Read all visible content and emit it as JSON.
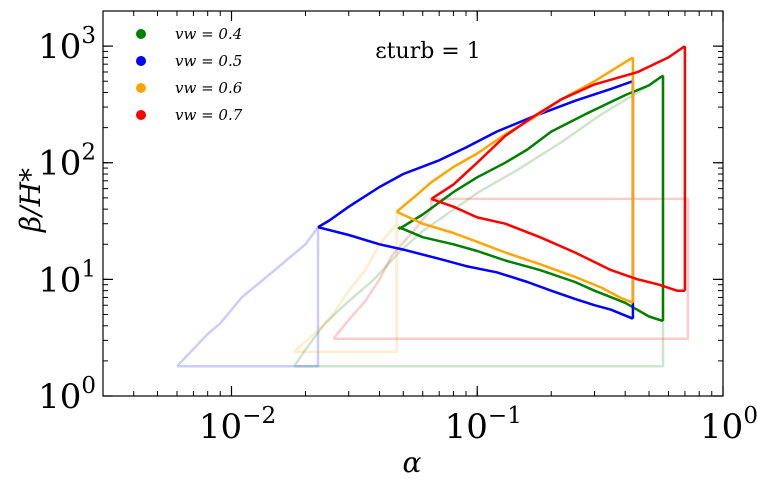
{
  "chart_data": {
    "type": "line",
    "xscale": "log",
    "yscale": "log",
    "xlim": [
      0.003,
      1.0
    ],
    "ylim": [
      1.0,
      2000.0
    ],
    "xlabel": "α",
    "ylabel": "β/H*",
    "annotation": "εturb = 1",
    "x_major_ticks": [
      {
        "value": 0.01,
        "base": "10",
        "exp": "−2"
      },
      {
        "value": 0.1,
        "base": "10",
        "exp": "−1"
      },
      {
        "value": 1.0,
        "base": "10",
        "exp": "0"
      }
    ],
    "y_major_ticks": [
      {
        "value": 1,
        "base": "10",
        "exp": "0"
      },
      {
        "value": 10,
        "base": "10",
        "exp": "1"
      },
      {
        "value": 100,
        "base": "10",
        "exp": "2"
      },
      {
        "value": 1000,
        "base": "10",
        "exp": "3"
      }
    ],
    "grid": false,
    "legend_position": "top-left",
    "legend": [
      {
        "label": "vw = 0.4",
        "color": "#008000"
      },
      {
        "label": "vw = 0.5",
        "color": "#0000ff"
      },
      {
        "label": "vw = 0.6",
        "color": "#ffa500"
      },
      {
        "label": "vw = 0.7",
        "color": "#ff0000"
      }
    ],
    "series": [
      {
        "name": "vw = 0.4",
        "color": "#008000",
        "faint_region": [
          [
            0.018,
            1.8
          ],
          [
            0.02,
            2.5
          ],
          [
            0.024,
            4.2
          ],
          [
            0.03,
            6.5
          ],
          [
            0.038,
            10
          ],
          [
            0.048,
            17
          ],
          [
            0.06,
            26
          ],
          [
            0.075,
            36
          ],
          [
            0.1,
            55
          ],
          [
            0.15,
            90
          ],
          [
            0.22,
            150
          ],
          [
            0.32,
            260
          ],
          [
            0.45,
            400
          ],
          [
            0.57,
            560
          ],
          [
            0.57,
            1.8
          ],
          [
            0.018,
            1.8
          ]
        ],
        "upper": [
          [
            0.048,
            27
          ],
          [
            0.06,
            36
          ],
          [
            0.08,
            56
          ],
          [
            0.1,
            75
          ],
          [
            0.13,
            100
          ],
          [
            0.16,
            130
          ],
          [
            0.2,
            185
          ],
          [
            0.28,
            265
          ],
          [
            0.4,
            380
          ],
          [
            0.5,
            460
          ],
          [
            0.57,
            560
          ]
        ],
        "vertical": [
          [
            0.57,
            560
          ],
          [
            0.57,
            4.4
          ]
        ],
        "lower": [
          [
            0.048,
            28
          ],
          [
            0.06,
            23
          ],
          [
            0.08,
            20
          ],
          [
            0.1,
            17.5
          ],
          [
            0.13,
            14.5
          ],
          [
            0.18,
            12
          ],
          [
            0.25,
            9.5
          ],
          [
            0.3,
            8
          ],
          [
            0.4,
            6.3
          ],
          [
            0.5,
            4.8
          ],
          [
            0.57,
            4.4
          ]
        ],
        "closing": [
          [
            0.048,
            27
          ],
          [
            0.048,
            28
          ]
        ]
      },
      {
        "name": "vw = 0.5",
        "color": "#0000ff",
        "faint_region": [
          [
            0.006,
            1.8
          ],
          [
            0.008,
            3.4
          ],
          [
            0.009,
            4.2
          ],
          [
            0.011,
            7
          ],
          [
            0.015,
            12
          ],
          [
            0.017,
            15
          ],
          [
            0.02,
            20
          ],
          [
            0.0225,
            28
          ],
          [
            0.0225,
            1.8
          ],
          [
            0.006,
            1.8
          ]
        ],
        "upper": [
          [
            0.0225,
            28
          ],
          [
            0.025,
            32
          ],
          [
            0.03,
            42
          ],
          [
            0.04,
            62
          ],
          [
            0.05,
            80
          ],
          [
            0.07,
            105
          ],
          [
            0.09,
            135
          ],
          [
            0.12,
            185
          ],
          [
            0.17,
            250
          ],
          [
            0.25,
            340
          ],
          [
            0.35,
            430
          ],
          [
            0.43,
            500
          ]
        ],
        "vertical": [
          [
            0.43,
            500
          ],
          [
            0.43,
            4.6
          ]
        ],
        "lower": [
          [
            0.0225,
            28
          ],
          [
            0.03,
            24
          ],
          [
            0.04,
            20
          ],
          [
            0.05,
            18
          ],
          [
            0.07,
            15
          ],
          [
            0.09,
            13
          ],
          [
            0.12,
            11.5
          ],
          [
            0.16,
            9.5
          ],
          [
            0.2,
            8
          ],
          [
            0.25,
            6.8
          ],
          [
            0.3,
            6
          ],
          [
            0.35,
            5.5
          ],
          [
            0.43,
            4.6
          ]
        ],
        "closing": []
      },
      {
        "name": "vw = 0.6",
        "color": "#ffa500",
        "faint_region": [
          [
            0.018,
            2.4
          ],
          [
            0.022,
            3.5
          ],
          [
            0.025,
            4.5
          ],
          [
            0.03,
            8
          ],
          [
            0.035,
            12
          ],
          [
            0.04,
            20
          ],
          [
            0.047,
            30
          ],
          [
            0.047,
            38
          ],
          [
            0.047,
            2.4
          ],
          [
            0.018,
            2.4
          ]
        ],
        "upper": [
          [
            0.047,
            38
          ],
          [
            0.055,
            50
          ],
          [
            0.065,
            68
          ],
          [
            0.08,
            92
          ],
          [
            0.1,
            120
          ],
          [
            0.13,
            175
          ],
          [
            0.17,
            245
          ],
          [
            0.22,
            350
          ],
          [
            0.3,
            500
          ],
          [
            0.43,
            800
          ]
        ],
        "vertical": [
          [
            0.43,
            800
          ],
          [
            0.43,
            6.3
          ]
        ],
        "lower": [
          [
            0.047,
            38
          ],
          [
            0.06,
            30
          ],
          [
            0.08,
            25
          ],
          [
            0.1,
            21
          ],
          [
            0.13,
            17
          ],
          [
            0.18,
            13.5
          ],
          [
            0.25,
            10.5
          ],
          [
            0.32,
            8.5
          ],
          [
            0.38,
            7
          ],
          [
            0.43,
            6.3
          ]
        ],
        "closing": []
      },
      {
        "name": "vw = 0.7",
        "color": "#ff0000",
        "faint_region": [
          [
            0.026,
            3.1
          ],
          [
            0.03,
            4.5
          ],
          [
            0.035,
            6.5
          ],
          [
            0.04,
            10
          ],
          [
            0.045,
            16
          ],
          [
            0.055,
            26
          ],
          [
            0.065,
            40
          ],
          [
            0.065,
            49
          ],
          [
            0.72,
            49
          ],
          [
            0.72,
            3.1
          ],
          [
            0.026,
            3.1
          ]
        ],
        "upper": [
          [
            0.065,
            49
          ],
          [
            0.08,
            65
          ],
          [
            0.1,
            100
          ],
          [
            0.13,
            170
          ],
          [
            0.17,
            250
          ],
          [
            0.22,
            350
          ],
          [
            0.3,
            470
          ],
          [
            0.45,
            600
          ],
          [
            0.6,
            800
          ],
          [
            0.7,
            1000
          ]
        ],
        "vertical": [
          [
            0.7,
            1000
          ],
          [
            0.7,
            8
          ]
        ],
        "lower": [
          [
            0.065,
            49
          ],
          [
            0.08,
            42
          ],
          [
            0.1,
            34
          ],
          [
            0.13,
            30
          ],
          [
            0.18,
            23
          ],
          [
            0.25,
            17
          ],
          [
            0.35,
            12
          ],
          [
            0.45,
            10
          ],
          [
            0.55,
            9
          ],
          [
            0.65,
            8
          ],
          [
            0.7,
            8
          ]
        ],
        "closing": []
      }
    ]
  }
}
